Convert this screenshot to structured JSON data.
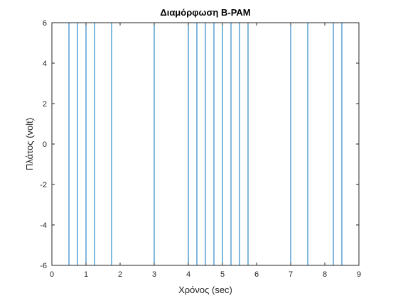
{
  "chart_data": {
    "type": "line",
    "title": "Διαμόρφωση B-PAM",
    "xlabel": "Χρόνος (sec)",
    "ylabel": "Πλάτος (volt)",
    "xlim": [
      0,
      9
    ],
    "ylim": [
      -6,
      6
    ],
    "xticks": [
      0,
      1,
      2,
      3,
      4,
      5,
      6,
      7,
      8,
      9
    ],
    "yticks": [
      -6,
      -4,
      -2,
      0,
      2,
      4,
      6
    ],
    "grid": false,
    "line_color": "#0072BD",
    "axis_color": "#262626",
    "series": [
      {
        "x": [
          0,
          0.5,
          0.5,
          0.75,
          0.75,
          1.0,
          1.0,
          1.25,
          1.25,
          1.75,
          1.75,
          3.0,
          3.0,
          4.0,
          4.0,
          4.25,
          4.25,
          4.5,
          4.5,
          4.75,
          4.75,
          5.0,
          5.0,
          5.25,
          5.25,
          5.5,
          5.5,
          5.75,
          5.75,
          7.0,
          7.0,
          7.5,
          7.5,
          8.25,
          8.25,
          8.5,
          8.5,
          9.0
        ],
        "y": [
          6,
          6,
          -6,
          -6,
          6,
          6,
          -6,
          -6,
          6,
          6,
          -6,
          -6,
          6,
          6,
          -6,
          -6,
          6,
          6,
          -6,
          -6,
          6,
          6,
          -6,
          -6,
          6,
          6,
          -6,
          -6,
          6,
          6,
          -6,
          -6,
          6,
          6,
          -6,
          -6,
          6,
          6
        ]
      }
    ]
  }
}
